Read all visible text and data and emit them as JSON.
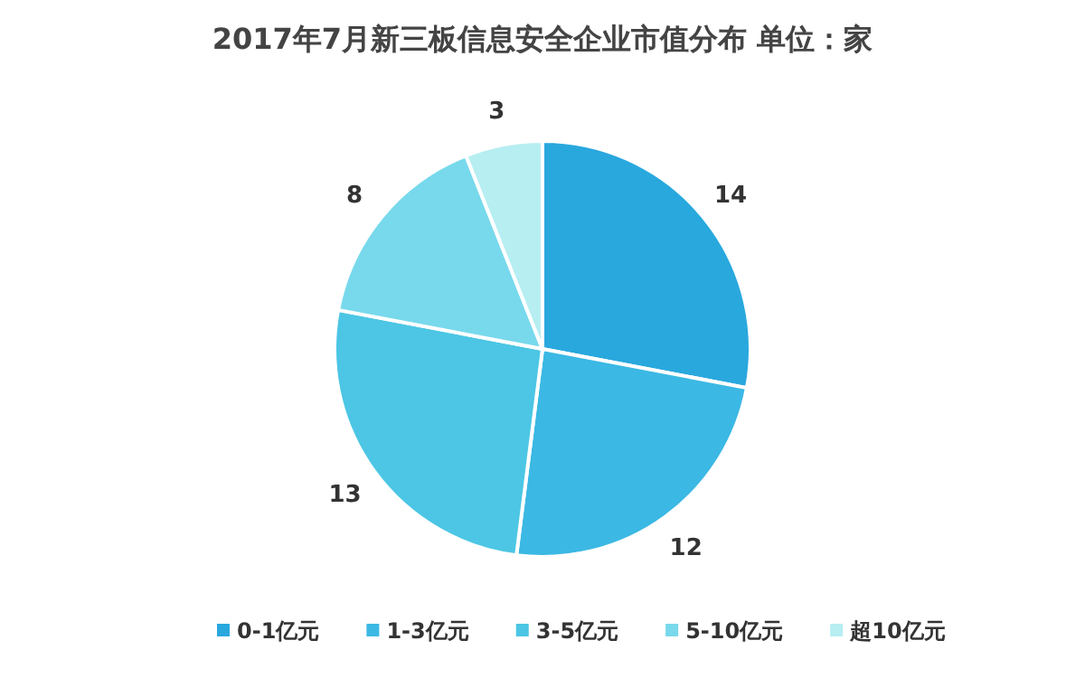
{
  "chart_data": {
    "type": "pie",
    "title": "2017年7月新三板信息安全企业市值分布  单位：家",
    "categories": [
      "0-1亿元",
      "1-3亿元",
      "3-5亿元",
      "5-10亿元",
      "超10亿元"
    ],
    "values": [
      14,
      12,
      13,
      8,
      3
    ],
    "colors": [
      "#29a8de",
      "#3bb8e4",
      "#4cc6e4",
      "#78d9ec",
      "#b6eef2"
    ],
    "data_labels": true,
    "legend": "bottom"
  }
}
